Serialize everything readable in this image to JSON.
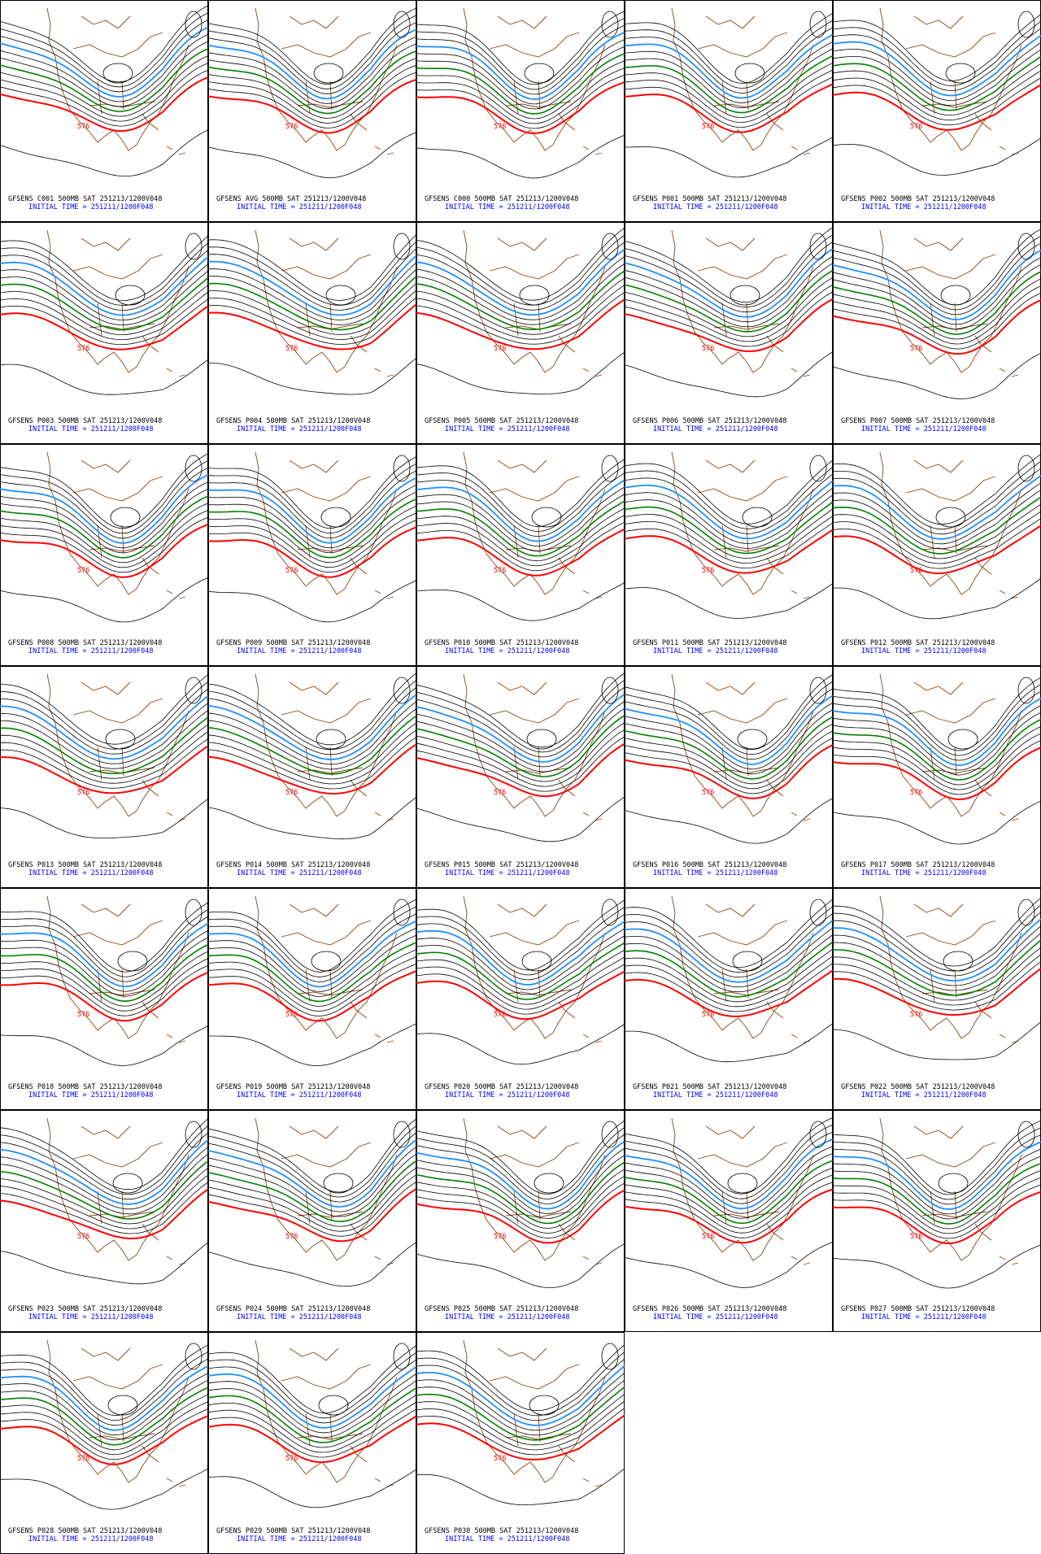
{
  "panels": [
    {
      "title": "GFSENS C001 500MB SAT 251213/1200V048",
      "initial_time": "INITIAL TIME = 251211/1200F048",
      "contour_label": "576"
    },
    {
      "title": "GFSENS AVG 500MB SAT 251213/1200V048",
      "initial_time": "INITIAL TIME = 251211/1200F048",
      "contour_label": "576"
    },
    {
      "title": "GFSENS C000 500MB SAT 251213/1200V048",
      "initial_time": "INITIAL TIME = 251211/1200F048",
      "contour_label": "576"
    },
    {
      "title": "GFSENS P001 500MB SAT 251213/1200V048",
      "initial_time": "INITIAL TIME = 251211/1200F048",
      "contour_label": "576"
    },
    {
      "title": "GFSENS P002 500MB SAT 251213/1200V048",
      "initial_time": "INITIAL TIME = 251211/1200F048",
      "contour_label": "576"
    },
    {
      "title": "GFSENS P003 500MB SAT 251213/1200V048",
      "initial_time": "INITIAL TIME = 251211/1200F048",
      "contour_label": "576"
    },
    {
      "title": "GFSENS P004 500MB SAT 251213/1200V048",
      "initial_time": "INITIAL TIME = 251211/1200F048",
      "contour_label": "576"
    },
    {
      "title": "GFSENS P005 500MB SAT 251213/1200V048",
      "initial_time": "INITIAL TIME = 251211/1200F048",
      "contour_label": "576"
    },
    {
      "title": "GFSENS P006 500MB SAT 251213/1200V048",
      "initial_time": "INITIAL TIME = 251211/1200F048",
      "contour_label": "576"
    },
    {
      "title": "GFSENS P007 500MB SAT 251213/1200V048",
      "initial_time": "INITIAL TIME = 251211/1200F048",
      "contour_label": "576"
    },
    {
      "title": "GFSENS P008 500MB SAT 251213/1200V048",
      "initial_time": "INITIAL TIME = 251211/1200F048",
      "contour_label": "576"
    },
    {
      "title": "GFSENS P009 500MB SAT 251213/1200V048",
      "initial_time": "INITIAL TIME = 251211/1200F048",
      "contour_label": "576"
    },
    {
      "title": "GFSENS P010 500MB SAT 251213/1200V048",
      "initial_time": "INITIAL TIME = 251211/1200F048",
      "contour_label": "576"
    },
    {
      "title": "GFSENS P011 500MB SAT 251213/1200V048",
      "initial_time": "INITIAL TIME = 251211/1200F048",
      "contour_label": "576"
    },
    {
      "title": "GFSENS P012 500MB SAT 251213/1200V048",
      "initial_time": "INITIAL TIME = 251211/1200F048",
      "contour_label": "576"
    },
    {
      "title": "GFSENS P013 500MB SAT 251213/1200V048",
      "initial_time": "INITIAL TIME = 251211/1200F048",
      "contour_label": "576"
    },
    {
      "title": "GFSENS P014 500MB SAT 251213/1200V048",
      "initial_time": "INITIAL TIME = 251211/1200F048",
      "contour_label": "576"
    },
    {
      "title": "GFSENS P015 500MB SAT 251213/1200V048",
      "initial_time": "INITIAL TIME = 251211/1200F048",
      "contour_label": "576"
    },
    {
      "title": "GFSENS P016 500MB SAT 251213/1200V048",
      "initial_time": "INITIAL TIME = 251211/1200F048",
      "contour_label": "576"
    },
    {
      "title": "GFSENS P017 500MB SAT 251213/1200V048",
      "initial_time": "INITIAL TIME = 251211/1200F048",
      "contour_label": "576"
    },
    {
      "title": "GFSENS P018 500MB SAT 251213/1200V048",
      "initial_time": "INITIAL TIME = 251211/1200F048",
      "contour_label": "576"
    },
    {
      "title": "GFSENS P019 500MB SAT 251213/1200V048",
      "initial_time": "INITIAL TIME = 251211/1200F048",
      "contour_label": "576"
    },
    {
      "title": "GFSENS P020 500MB SAT 251213/1200V048",
      "initial_time": "INITIAL TIME = 251211/1200F048",
      "contour_label": "576"
    },
    {
      "title": "GFSENS P021 500MB SAT 251213/1200V048",
      "initial_time": "INITIAL TIME = 251211/1200F048",
      "contour_label": "576"
    },
    {
      "title": "GFSENS P022 500MB SAT 251213/1200V048",
      "initial_time": "INITIAL TIME = 251211/1200F048",
      "contour_label": "576"
    },
    {
      "title": "GFSENS P023 500MB SAT 251213/1200V048",
      "initial_time": "INITIAL TIME = 251211/1200F048",
      "contour_label": "576"
    },
    {
      "title": "GFSENS P024 500MB SAT 251213/1200V048",
      "initial_time": "INITIAL TIME = 251211/1200F048",
      "contour_label": "576"
    },
    {
      "title": "GFSENS P025 500MB SAT 251213/1200V048",
      "initial_time": "INITIAL TIME = 251211/1200F048",
      "contour_label": "576"
    },
    {
      "title": "GFSENS P026 500MB SAT 251213/1200V048",
      "initial_time": "INITIAL TIME = 251211/1200F048",
      "contour_label": "576"
    },
    {
      "title": "GFSENS P027 500MB SAT 251213/1200V048",
      "initial_time": "INITIAL TIME = 251211/1200F048",
      "contour_label": "576"
    },
    {
      "title": "GFSENS P028 500MB SAT 251213/1200V048",
      "initial_time": "INITIAL TIME = 251211/1200F048",
      "contour_label": "576"
    },
    {
      "title": "GFSENS P029 500MB SAT 251213/1200V048",
      "initial_time": "INITIAL TIME = 251211/1200F048",
      "contour_label": "576"
    },
    {
      "title": "GFSENS P030 500MB SAT 251213/1200V048",
      "initial_time": "INITIAL TIME = 251211/1200F048",
      "contour_label": "576"
    }
  ]
}
